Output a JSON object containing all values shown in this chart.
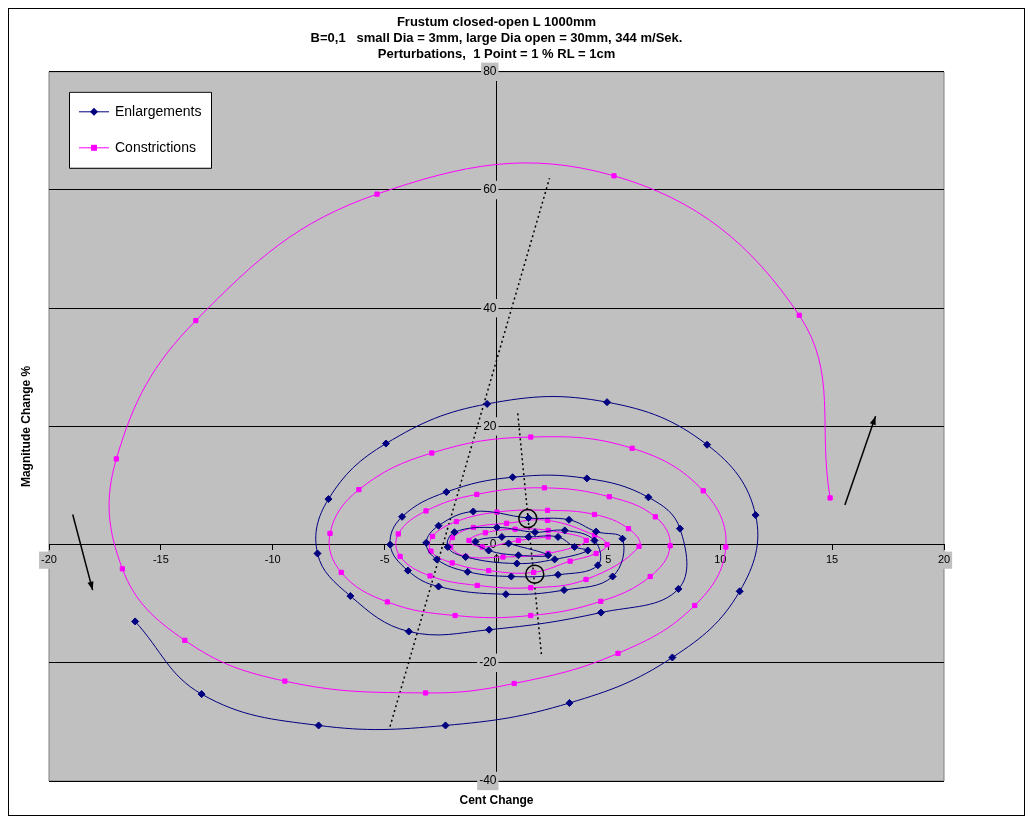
{
  "chart_data": {
    "type": "line",
    "title": [
      "Frustum closed-open L 1000mm",
      "B=0,1   small Dia = 3mm, large Dia open = 30mm, 344 m/Sek.",
      "Perturbations,  1 Point = 1 % RL = 1cm"
    ],
    "xlabel": "Cent Change",
    "ylabel": "Magnitude Change %",
    "xlim": [
      -20,
      20
    ],
    "xticks": [
      -20,
      -15,
      -10,
      -5,
      0,
      5,
      10,
      15,
      20
    ],
    "ylim": [
      -40,
      80
    ],
    "yticks": [
      -40,
      -20,
      0,
      20,
      40,
      60,
      80
    ],
    "grid": "y",
    "legend": "top left",
    "series": [
      {
        "name": "Enlargements",
        "color": "#000080",
        "marker": "diamond",
        "x": [
          -16.15,
          -13.18,
          -7.95,
          -2.28,
          3.26,
          7.86,
          10.87,
          11.58,
          9.41,
          4.94,
          -0.42,
          -4.94,
          -7.51,
          -8.0,
          -6.53,
          -3.92,
          -0.33,
          4.67,
          8.13,
          8.2,
          6.79,
          4.04,
          0.72,
          -2.24,
          -4.22,
          -4.75,
          -3.96,
          -2.59,
          0.42,
          3.02,
          5.19,
          5.63,
          4.45,
          3.24,
          1.43,
          -1.04,
          -2.59,
          -3.14,
          -2.67,
          -1.29,
          0.66,
          2.75,
          4.53,
          4.38,
          3.05,
          1.72,
          0.02,
          -1.88,
          -2.18,
          -1.38,
          0.91,
          2.6,
          4.08,
          3.49,
          2.75,
          1.43,
          0.24,
          -0.94,
          -0.35,
          0.98,
          2.31,
          0.54
        ],
        "values": [
          -13.0,
          -25.3,
          -30.6,
          -30.6,
          -26.8,
          -19.1,
          -7.9,
          5.0,
          16.9,
          24.1,
          23.8,
          17.1,
          7.7,
          -1.5,
          -8.7,
          -14.7,
          -14.4,
          -11.5,
          -7.5,
          2.7,
          8.0,
          11.2,
          11.4,
          8.9,
          4.7,
          0,
          -4.4,
          -7.1,
          -8.4,
          -7.7,
          -5.4,
          1.0,
          2.2,
          4.2,
          4.5,
          5.6,
          3.2,
          0.3,
          -2.5,
          -4.6,
          -5.4,
          -5.1,
          -3.5,
          0.7,
          2.4,
          2.1,
          2.9,
          2.1,
          -0.4,
          -2.1,
          -3.2,
          -2.5,
          -1.0,
          -0.4,
          1.3,
          1.3,
          1.3,
          0.5,
          -1.0,
          -1.8,
          -1.8,
          0.2
        ]
      },
      {
        "name": "Constrictions",
        "color": "#ff00ff",
        "marker": "square",
        "x": [
          14.91,
          13.53,
          5.25,
          -5.34,
          -13.44,
          -16.99,
          -16.72,
          -13.93,
          -9.46,
          -3.17,
          0.79,
          5.43,
          8.86,
          10.25,
          9.24,
          6.06,
          1.53,
          -2.89,
          -6.15,
          -7.44,
          -6.94,
          -4.88,
          -1.85,
          1.53,
          4.66,
          6.87,
          7.76,
          7.1,
          5.04,
          2.14,
          -0.88,
          -3.15,
          -4.39,
          -4.31,
          -2.97,
          -0.86,
          1.53,
          4.0,
          6.37,
          5.9,
          4.38,
          2.28,
          0.02,
          -1.79,
          -2.86,
          -2.93,
          -1.98,
          -0.35,
          1.66,
          3.29,
          4.45,
          4.94,
          4.38,
          2.28,
          0.45,
          -1.03,
          -1.97,
          -2.05,
          -1.38,
          0.29,
          2.31,
          4.01,
          2.31,
          0.83,
          -0.5,
          -1.23,
          -0.64,
          0.98,
          2.31
        ],
        "values": [
          7.9,
          38.8,
          62.4,
          59.3,
          37.9,
          14.5,
          -4.1,
          -16.2,
          -23.1,
          -25.1,
          -23.5,
          -18.4,
          -10.3,
          -0.4,
          9.1,
          16.3,
          18.2,
          15.5,
          9.3,
          1.9,
          -4.7,
          -9.7,
          -12.0,
          -12.0,
          -9.6,
          -5.4,
          -0.2,
          4.7,
          8.1,
          9.6,
          8.5,
          5.7,
          1.8,
          -2.0,
          -5.3,
          -6.9,
          -7.3,
          -5.9,
          -0.3,
          2.7,
          5.1,
          5.8,
          5.5,
          3.9,
          1.4,
          -1.1,
          -3.1,
          -4.4,
          -4.7,
          -2.8,
          -1.5,
          0.0,
          1.6,
          4.1,
          3.6,
          2.9,
          1.2,
          -0.4,
          -2.0,
          -2.1,
          -1.5,
          0.7,
          2.4,
          2.6,
          2.0,
          0.7,
          -0.4,
          0.7,
          1.3
        ]
      },
      {
        "type": "line",
        "color": "#000000",
        "marker": "none",
        "line_style": "dotted",
        "x": [
          -4.76,
          2.37
        ],
        "values": [
          -30.8,
          62.0
        ]
      },
      {
        "type": "line",
        "color": "#000000",
        "marker": "none",
        "line_style": "dotted",
        "x": [
          0.95,
          2.02
        ],
        "values": [
          22.2,
          -19.0
        ]
      }
    ]
  }
}
